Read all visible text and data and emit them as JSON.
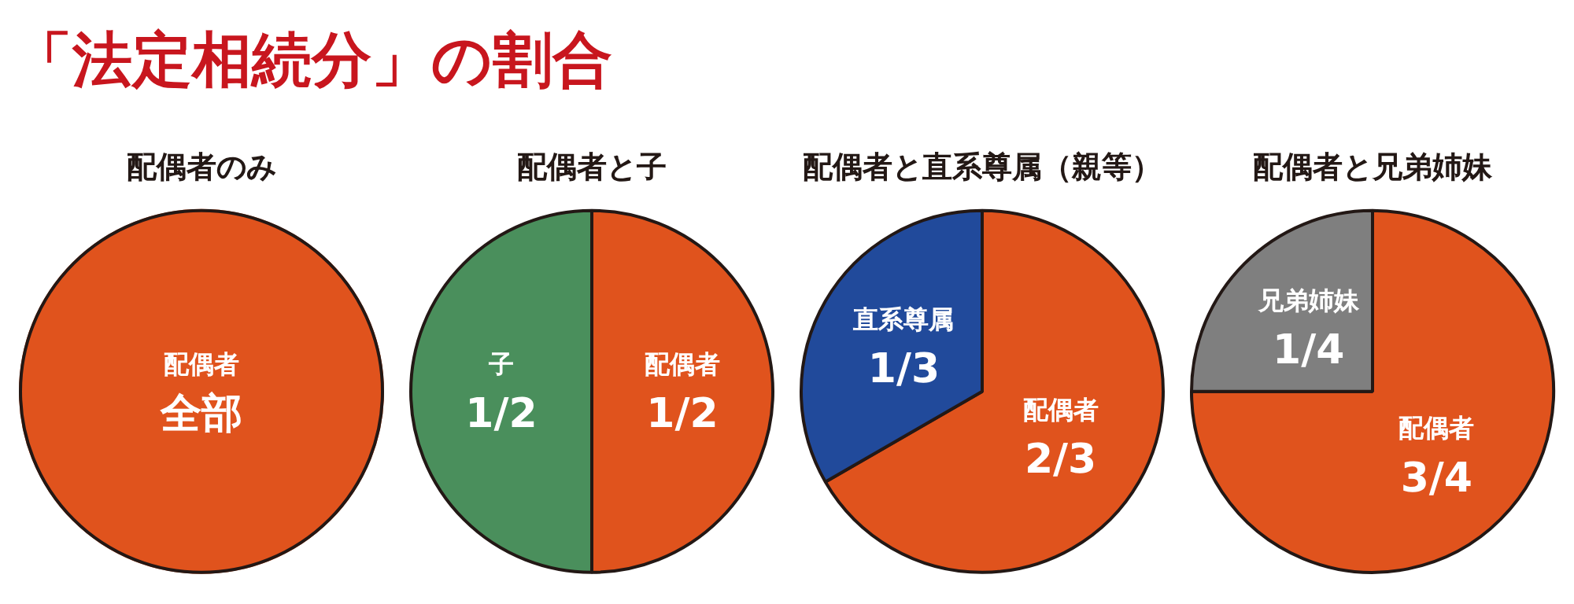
{
  "chart_data": [
    {
      "type": "other",
      "title": "「法定相続分」の割合"
    },
    {
      "type": "pie",
      "title": "配偶者のみ",
      "categories": [
        "配偶者"
      ],
      "values": [
        1
      ],
      "colors": [
        "#e0531d"
      ],
      "value_labels": [
        "全部"
      ]
    },
    {
      "type": "pie",
      "title": "配偶者と子",
      "categories": [
        "配偶者",
        "子"
      ],
      "values": [
        0.5,
        0.5
      ],
      "colors": [
        "#e0531d",
        "#4a8f5c"
      ],
      "value_labels": [
        "1/2",
        "1/2"
      ]
    },
    {
      "type": "pie",
      "title": "配偶者と直系尊属（親等）",
      "categories": [
        "配偶者",
        "直系尊属"
      ],
      "values": [
        0.6667,
        0.3333
      ],
      "colors": [
        "#e0531d",
        "#214a9b"
      ],
      "value_labels": [
        "2/3",
        "1/3"
      ]
    },
    {
      "type": "pie",
      "title": "配偶者と兄弟姉妹",
      "categories": [
        "配偶者",
        "兄弟姉妹"
      ],
      "values": [
        0.75,
        0.25
      ],
      "colors": [
        "#e0531d",
        "#7f7f7f"
      ],
      "value_labels": [
        "3/4",
        "1/4"
      ]
    }
  ]
}
